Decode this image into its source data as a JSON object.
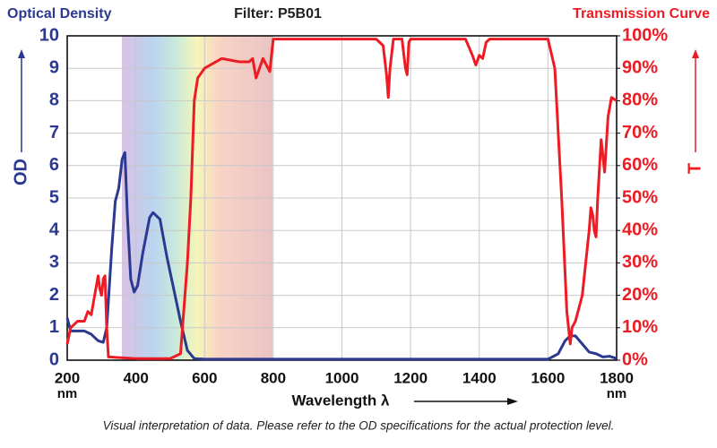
{
  "chart_data": {
    "type": "line",
    "title": "Filter: P5B01",
    "y_title": "Optical Density",
    "y2_title": "Transmission Curve",
    "y_axis_label": "OD",
    "y2_axis_label": "T",
    "x_axis_label": "Wavelength λ",
    "x_unit": "nm",
    "note": "Visual interpretation of data. Please refer to the OD specifications for the actual protection level.",
    "xlim": [
      200,
      1800
    ],
    "xticks": [
      200,
      400,
      600,
      800,
      1000,
      1200,
      1400,
      1600,
      1800
    ],
    "ylim": [
      0,
      10
    ],
    "yticks": [
      0,
      1,
      2,
      3,
      4,
      5,
      6,
      7,
      8,
      9,
      10
    ],
    "y2lim": [
      0,
      100
    ],
    "y2ticks": [
      {
        "value": 0,
        "label": "0%"
      },
      {
        "value": 10,
        "label": "10%"
      },
      {
        "value": 20,
        "label": "20%"
      },
      {
        "value": 30,
        "label": "30%"
      },
      {
        "value": 40,
        "label": "40%"
      },
      {
        "value": 50,
        "label": "50%"
      },
      {
        "value": 60,
        "label": "60%"
      },
      {
        "value": 70,
        "label": "70%"
      },
      {
        "value": 80,
        "label": "80%"
      },
      {
        "value": 90,
        "label": "90%"
      },
      {
        "value": 100,
        "label": "100%"
      }
    ],
    "grid": true,
    "series": [
      {
        "name": "OD",
        "color": "#2b3990",
        "axis": "y",
        "x": [
          200,
          210,
          250,
          270,
          290,
          305,
          315,
          330,
          340,
          350,
          360,
          368,
          375,
          385,
          395,
          405,
          420,
          440,
          450,
          470,
          490,
          510,
          530,
          550,
          570,
          600,
          1600,
          1630,
          1650,
          1665,
          1680,
          1700,
          1720,
          1740,
          1760,
          1780,
          1800
        ],
        "values": [
          1.3,
          0.9,
          0.9,
          0.8,
          0.6,
          0.55,
          1.0,
          3.5,
          4.9,
          5.3,
          6.2,
          6.4,
          4.5,
          2.5,
          2.1,
          2.3,
          3.3,
          4.4,
          4.55,
          4.35,
          3.2,
          2.2,
          1.2,
          0.3,
          0.05,
          0.03,
          0.03,
          0.2,
          0.6,
          0.75,
          0.75,
          0.5,
          0.25,
          0.2,
          0.1,
          0.12,
          0.05
        ]
      },
      {
        "name": "T",
        "color": "#ed1c24",
        "axis": "y2",
        "x": [
          200,
          210,
          230,
          250,
          260,
          270,
          280,
          290,
          295,
          300,
          305,
          310,
          315,
          320,
          400,
          500,
          530,
          550,
          560,
          570,
          580,
          600,
          650,
          700,
          730,
          740,
          750,
          760,
          770,
          780,
          790,
          800,
          1000,
          1100,
          1120,
          1130,
          1135,
          1140,
          1150,
          1175,
          1185,
          1190,
          1195,
          1200,
          1360,
          1380,
          1390,
          1400,
          1410,
          1420,
          1430,
          1600,
          1620,
          1640,
          1655,
          1665,
          1670,
          1680,
          1700,
          1710,
          1720,
          1725,
          1730,
          1735,
          1740,
          1745,
          1755,
          1765,
          1775,
          1785,
          1800
        ],
        "values": [
          5,
          10,
          12,
          12,
          15,
          14,
          20,
          26,
          22,
          20,
          25,
          26,
          10,
          1,
          0.5,
          0.5,
          2,
          30,
          50,
          80,
          87,
          90,
          93,
          92,
          92,
          93,
          87,
          90,
          93,
          91,
          89,
          99,
          99,
          99,
          97,
          88,
          81,
          90,
          99,
          99,
          90,
          88,
          98,
          99,
          99,
          94,
          91,
          94,
          93,
          98,
          99,
          99,
          90,
          50,
          15,
          5,
          10,
          12,
          20,
          30,
          40,
          47,
          45,
          40,
          38,
          50,
          68,
          58,
          75,
          81,
          80
        ]
      }
    ]
  }
}
